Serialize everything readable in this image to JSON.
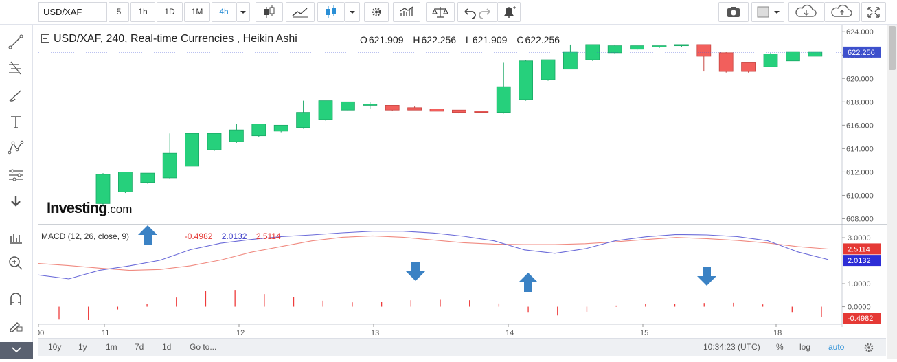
{
  "toolbar": {
    "symbol": "USD/XAF",
    "intervals": [
      "5",
      "1h",
      "1D",
      "1M",
      "4h"
    ],
    "active_interval": "4h"
  },
  "header": {
    "title": "USD/XAF, 240, Real-time Currencies , Heikin Ashi",
    "open_label": "O",
    "open": "621.909",
    "high_label": "H",
    "high": "622.256",
    "low_label": "L",
    "low": "621.909",
    "close_label": "C",
    "close": "622.256"
  },
  "macd_legend": {
    "name": "MACD (12, 26, close, 9)",
    "hist": "-0.4982",
    "macd": "2.0132",
    "signal": "2.5114"
  },
  "logo": {
    "brand": "Investing",
    "domain": ".com"
  },
  "bottombar": {
    "ranges": [
      "10y",
      "1y",
      "1m",
      "7d",
      "1d"
    ],
    "goto": "Go to...",
    "time": "10:34:23 (UTC)",
    "percent": "%",
    "log": "log",
    "auto": "auto"
  },
  "colors": {
    "up": "#26d07c",
    "down": "#f25f5c",
    "macd": "#6c6cd9",
    "signal": "#f08a80",
    "accent": "#2a8fd6",
    "arrow": "#3b82c4"
  },
  "icons": [
    "crosshair-icon",
    "trendline-icon",
    "fib-icon",
    "brush-icon",
    "text-icon",
    "pattern-icon",
    "measure-icon",
    "arrow-down-icon",
    "indicators-icon",
    "zoom-icon",
    "magnet-icon",
    "lock-edit-icon",
    "camera-icon",
    "cloud-download-icon",
    "cloud-upload-icon",
    "fullscreen-icon",
    "gear-icon",
    "undo-icon",
    "redo-icon",
    "alert-icon"
  ],
  "chart_data": {
    "type": "candlestick",
    "title": "USD/XAF, 240, Real-time Currencies , Heikin Ashi",
    "price_ticks": [
      "624.000",
      "622.000",
      "620.000",
      "618.000",
      "616.000",
      "614.000",
      "612.000",
      "610.000",
      "608.000"
    ],
    "price_range": [
      607.5,
      624.6
    ],
    "last_price": "622.256",
    "x_ticks": [
      "00",
      "11",
      "12",
      "13",
      "14",
      "15",
      "18"
    ],
    "candles": [
      {
        "o": 609.3,
        "c": 611.8,
        "h": 611.9,
        "l": 609.2
      },
      {
        "o": 610.3,
        "c": 612.0,
        "h": 612.0,
        "l": 610.2
      },
      {
        "o": 611.1,
        "c": 611.9,
        "h": 611.9,
        "l": 611.0
      },
      {
        "o": 611.5,
        "c": 613.6,
        "h": 615.3,
        "l": 611.4
      },
      {
        "o": 612.5,
        "c": 615.3,
        "h": 615.3,
        "l": 612.5
      },
      {
        "o": 613.9,
        "c": 615.3,
        "h": 615.3,
        "l": 613.8
      },
      {
        "o": 614.6,
        "c": 615.6,
        "h": 616.1,
        "l": 614.5
      },
      {
        "o": 615.1,
        "c": 616.1,
        "h": 616.1,
        "l": 615.0
      },
      {
        "o": 615.5,
        "c": 616.0,
        "h": 616.0,
        "l": 615.4
      },
      {
        "o": 615.8,
        "c": 617.1,
        "h": 618.1,
        "l": 615.7
      },
      {
        "o": 616.5,
        "c": 618.1,
        "h": 618.1,
        "l": 616.4
      },
      {
        "o": 617.3,
        "c": 618.0,
        "h": 618.0,
        "l": 617.2
      },
      {
        "o": 617.7,
        "c": 617.8,
        "h": 618.0,
        "l": 617.4
      },
      {
        "o": 617.7,
        "c": 617.3,
        "h": 617.7,
        "l": 617.2
      },
      {
        "o": 617.5,
        "c": 617.3,
        "h": 617.6,
        "l": 617.3
      },
      {
        "o": 617.4,
        "c": 617.2,
        "h": 617.4,
        "l": 617.2
      },
      {
        "o": 617.3,
        "c": 617.1,
        "h": 617.3,
        "l": 617.0
      },
      {
        "o": 617.2,
        "c": 617.1,
        "h": 617.2,
        "l": 617.1
      },
      {
        "o": 617.1,
        "c": 619.3,
        "h": 621.4,
        "l": 617.0
      },
      {
        "o": 618.2,
        "c": 621.5,
        "h": 621.6,
        "l": 618.1
      },
      {
        "o": 619.9,
        "c": 621.6,
        "h": 621.6,
        "l": 619.8
      },
      {
        "o": 620.8,
        "c": 622.3,
        "h": 622.9,
        "l": 620.8
      },
      {
        "o": 621.6,
        "c": 622.9,
        "h": 622.9,
        "l": 621.5
      },
      {
        "o": 622.2,
        "c": 622.8,
        "h": 622.9,
        "l": 622.1
      },
      {
        "o": 622.5,
        "c": 622.8,
        "h": 622.8,
        "l": 622.4
      },
      {
        "o": 622.7,
        "c": 622.8,
        "h": 622.8,
        "l": 622.6
      },
      {
        "o": 622.8,
        "c": 622.9,
        "h": 622.9,
        "l": 622.7
      },
      {
        "o": 622.9,
        "c": 621.9,
        "h": 622.9,
        "l": 620.6
      },
      {
        "o": 622.2,
        "c": 620.6,
        "h": 622.3,
        "l": 620.5
      },
      {
        "o": 621.4,
        "c": 620.6,
        "h": 621.4,
        "l": 620.5
      },
      {
        "o": 621.0,
        "c": 622.1,
        "h": 622.2,
        "l": 621.0
      },
      {
        "o": 621.5,
        "c": 622.3,
        "h": 622.3,
        "l": 621.5
      },
      {
        "o": 621.9,
        "c": 622.3,
        "h": 622.3,
        "l": 621.9
      }
    ],
    "macd": {
      "name": "MACD (12, 26, close, 9)",
      "ticks": [
        "3.0000",
        "1.0000",
        "0.0000"
      ],
      "range": [
        -0.7,
        3.3
      ],
      "last_signal": "2.5114",
      "last_macd": "2.0132",
      "last_hist": "-0.4982",
      "macd_line": [
        1.38,
        1.21,
        1.58,
        1.78,
        2.02,
        2.48,
        2.76,
        2.92,
        3.05,
        3.12,
        3.21,
        3.28,
        3.28,
        3.2,
        3.06,
        2.86,
        2.47,
        2.32,
        2.52,
        2.87,
        3.04,
        3.14,
        3.12,
        3.05,
        2.87,
        2.38,
        2.05
      ],
      "signal_line": [
        1.88,
        1.79,
        1.68,
        1.58,
        1.62,
        1.78,
        2.03,
        2.37,
        2.62,
        2.86,
        3.02,
        3.08,
        3.02,
        2.9,
        2.78,
        2.72,
        2.7,
        2.7,
        2.74,
        2.82,
        2.92,
        3.01,
        2.96,
        2.88,
        2.77,
        2.61,
        2.51
      ],
      "histogram": [
        -0.56,
        -0.58,
        -0.12,
        0.12,
        0.4,
        0.7,
        0.73,
        0.55,
        0.43,
        0.26,
        0.19,
        0.2,
        0.28,
        0.3,
        0.28,
        0.14,
        -0.23,
        -0.38,
        -0.22,
        0.05,
        0.13,
        0.13,
        0.16,
        0.17,
        0.1,
        -0.23,
        -0.46
      ]
    },
    "grid": false
  }
}
